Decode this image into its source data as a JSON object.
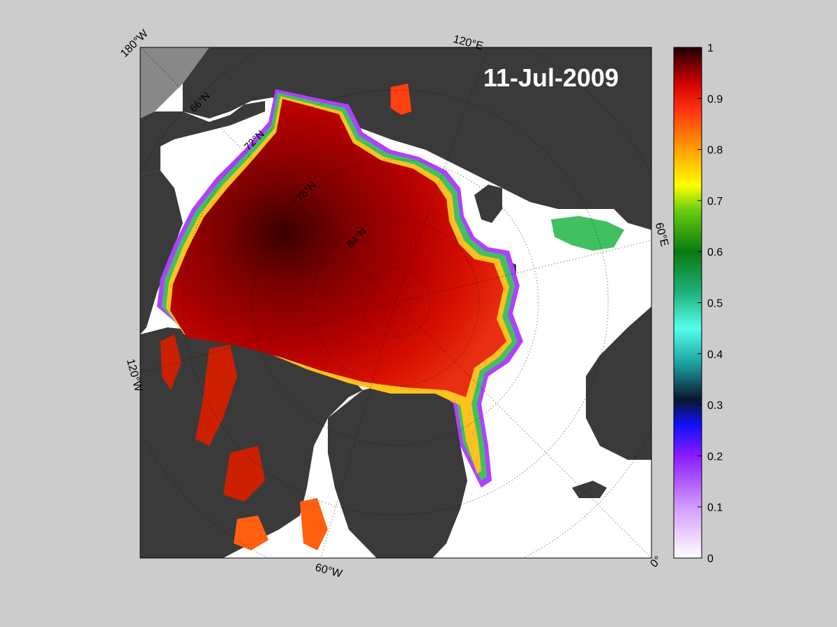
{
  "map": {
    "date_label": "11-Jul-2009",
    "meridian_labels": [
      {
        "key": "180w",
        "text": "180°W"
      },
      {
        "key": "120e",
        "text": "120°E"
      },
      {
        "key": "60e",
        "text": "60°E"
      },
      {
        "key": "0",
        "text": "0°"
      },
      {
        "key": "60w",
        "text": "60°W"
      },
      {
        "key": "120w",
        "text": "120°W"
      }
    ],
    "parallel_labels": [
      {
        "key": "66n",
        "text": "66°N"
      },
      {
        "key": "72n",
        "text": "72°N"
      },
      {
        "key": "78n",
        "text": "78°N"
      },
      {
        "key": "84n",
        "text": "84°N"
      }
    ],
    "colors": {
      "background": "#cccccc",
      "land": "#3a3a3a",
      "open_water": "#ffffff",
      "outside_domain": "#888888"
    }
  },
  "colorbar": {
    "ticks": [
      "0",
      "0.1",
      "0.2",
      "0.3",
      "0.4",
      "0.5",
      "0.6",
      "0.7",
      "0.8",
      "0.9",
      "1"
    ],
    "range": [
      0,
      1
    ],
    "stops": [
      {
        "value": 0.0,
        "color": "#ffffff"
      },
      {
        "value": 0.1,
        "color": "#d49bff"
      },
      {
        "value": 0.2,
        "color": "#8a1aff"
      },
      {
        "value": 0.26,
        "color": "#1010ff"
      },
      {
        "value": 0.31,
        "color": "#0a1530"
      },
      {
        "value": 0.38,
        "color": "#1b9ea0"
      },
      {
        "value": 0.45,
        "color": "#55ffee"
      },
      {
        "value": 0.52,
        "color": "#1fb07a"
      },
      {
        "value": 0.6,
        "color": "#0a7a10"
      },
      {
        "value": 0.68,
        "color": "#66cc10"
      },
      {
        "value": 0.73,
        "color": "#ffff00"
      },
      {
        "value": 0.8,
        "color": "#ffa000"
      },
      {
        "value": 0.88,
        "color": "#ff3010"
      },
      {
        "value": 0.93,
        "color": "#d00000"
      },
      {
        "value": 1.0,
        "color": "#200000"
      }
    ]
  }
}
